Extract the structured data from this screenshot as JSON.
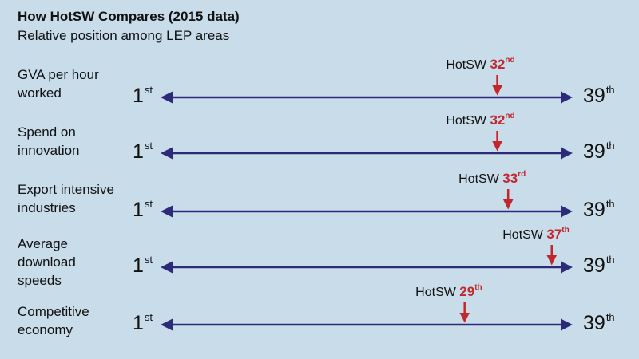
{
  "title": "How HotSW Compares (2015 data)",
  "subtitle": "Relative position among LEP areas",
  "scale": {
    "min_label": "1",
    "min_suffix": "st",
    "max_label": "39",
    "max_suffix": "th",
    "min": 1,
    "max": 39
  },
  "colors": {
    "background": "#c9dcea",
    "axis": "#2e2a7a",
    "marker": "#c1272d"
  },
  "rows": [
    {
      "label_lines": [
        "GVA per hour",
        "worked"
      ],
      "entity": "HotSW",
      "rank": 32,
      "rank_label": "32",
      "rank_suffix": "nd"
    },
    {
      "label_lines": [
        "Spend on",
        "innovation"
      ],
      "entity": "HotSW",
      "rank": 32,
      "rank_label": "32",
      "rank_suffix": "nd"
    },
    {
      "label_lines": [
        "Export intensive",
        "industries"
      ],
      "entity": "HotSW",
      "rank": 33,
      "rank_label": "33",
      "rank_suffix": "rd"
    },
    {
      "label_lines": [
        "Average",
        "download",
        "speeds"
      ],
      "entity": "HotSW",
      "rank": 37,
      "rank_label": "37",
      "rank_suffix": "th"
    },
    {
      "label_lines": [
        "Competitive",
        "economy"
      ],
      "entity": "HotSW",
      "rank": 29,
      "rank_label": "29",
      "rank_suffix": "th"
    }
  ]
}
